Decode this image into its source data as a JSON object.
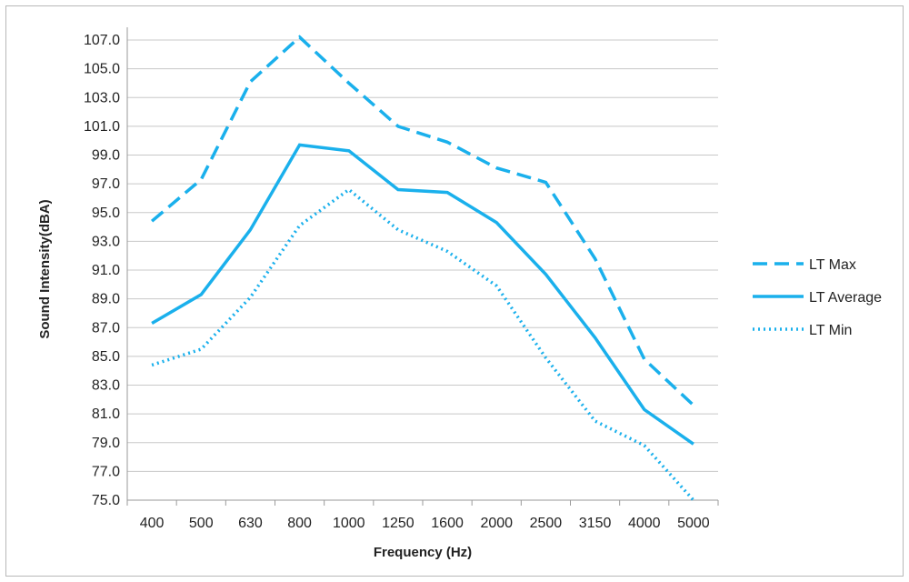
{
  "chart_data": {
    "type": "line",
    "xlabel": "Frequency (Hz)",
    "ylabel": "Sound Intensity(dBA)",
    "categories": [
      "400",
      "500",
      "630",
      "800",
      "1000",
      "1250",
      "1600",
      "2000",
      "2500",
      "3150",
      "4000",
      "5000"
    ],
    "ylim": [
      75.0,
      107.0
    ],
    "yticks": [
      "75.0",
      "77.0",
      "79.0",
      "81.0",
      "83.0",
      "85.0",
      "87.0",
      "89.0",
      "91.0",
      "93.0",
      "95.0",
      "97.0",
      "99.0",
      "101.0",
      "103.0",
      "105.0",
      "107.0"
    ],
    "grid": "horizontal",
    "legend_position": "right",
    "line_color": "#1ab0ec",
    "series": [
      {
        "name": "LT Max",
        "style": "dashed",
        "values": [
          94.4,
          97.3,
          104.1,
          107.2,
          104.0,
          101.0,
          99.9,
          98.1,
          97.1,
          91.8,
          84.8,
          81.6
        ]
      },
      {
        "name": "LT Average",
        "style": "solid",
        "values": [
          87.3,
          89.3,
          93.8,
          99.7,
          99.3,
          96.6,
          96.4,
          94.3,
          90.7,
          86.3,
          81.3,
          78.9
        ]
      },
      {
        "name": "LT Min",
        "style": "dotted",
        "values": [
          84.4,
          85.5,
          89.1,
          94.1,
          96.6,
          93.8,
          92.3,
          89.9,
          84.9,
          80.5,
          78.8,
          75.0
        ]
      }
    ]
  }
}
